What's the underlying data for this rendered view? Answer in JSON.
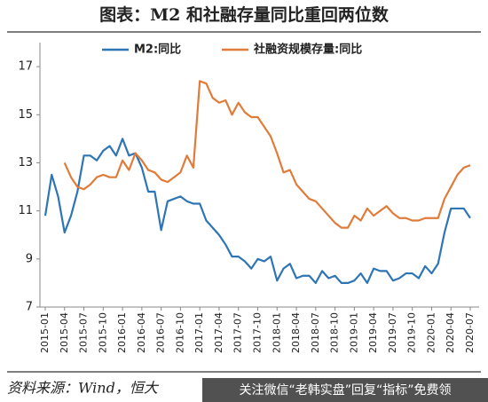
{
  "chart_data": {
    "type": "line",
    "title": "图表：M2 和社融存量同比重回两位数",
    "source": "资料来源：Wind，恒大",
    "watermark": "关注微信“老韩实盘”回复“指标”免费领",
    "categories": [
      "2015-01",
      null,
      null,
      "2015-04",
      null,
      null,
      "2015-07",
      null,
      null,
      "2015-10",
      null,
      null,
      "2016-01",
      null,
      null,
      "2016-04",
      null,
      null,
      "2016-07",
      null,
      null,
      "2016-10",
      null,
      null,
      "2017-01",
      null,
      null,
      "2017-04",
      null,
      null,
      "2017-07",
      null,
      null,
      "2017-10",
      null,
      null,
      "2018-01",
      null,
      null,
      "2018-04",
      null,
      null,
      "2018-07",
      null,
      null,
      "2018-10",
      null,
      null,
      "2019-01",
      null,
      null,
      "2019-04",
      null,
      null,
      "2019-07",
      null,
      null,
      "2019-10",
      null,
      null,
      "2020-01",
      null,
      null,
      "2020-04",
      null,
      null,
      "2020-07"
    ],
    "series": [
      {
        "name": "M2:同比",
        "color": "#2e75b6",
        "values": [
          10.8,
          12.5,
          11.6,
          10.1,
          10.8,
          11.8,
          13.3,
          13.3,
          13.1,
          13.5,
          13.7,
          13.3,
          14.0,
          13.3,
          13.4,
          12.8,
          11.8,
          11.8,
          10.2,
          11.4,
          11.5,
          11.6,
          11.4,
          11.3,
          11.3,
          10.6,
          10.3,
          10.0,
          9.6,
          9.1,
          9.1,
          8.9,
          8.6,
          9.0,
          8.9,
          9.1,
          8.1,
          8.6,
          8.8,
          8.2,
          8.3,
          8.3,
          8.0,
          8.5,
          8.2,
          8.3,
          8.0,
          8.0,
          8.1,
          8.4,
          8.0,
          8.6,
          8.5,
          8.5,
          8.1,
          8.2,
          8.4,
          8.4,
          8.2,
          8.7,
          8.4,
          8.8,
          10.1,
          11.1,
          11.1,
          11.1,
          10.7
        ]
      },
      {
        "name": "社融资规模存量:同比",
        "color": "#e07b39",
        "values": [
          null,
          null,
          null,
          13.0,
          12.4,
          12.0,
          11.9,
          12.1,
          12.4,
          12.5,
          12.4,
          12.4,
          13.1,
          12.7,
          13.4,
          13.1,
          12.7,
          12.6,
          12.3,
          12.2,
          12.4,
          12.6,
          13.3,
          12.8,
          16.4,
          16.3,
          15.7,
          15.5,
          15.6,
          15.0,
          15.5,
          15.1,
          14.9,
          14.9,
          14.5,
          14.1,
          13.4,
          12.6,
          12.7,
          12.1,
          11.8,
          11.5,
          11.4,
          11.1,
          10.8,
          10.5,
          10.3,
          10.3,
          10.8,
          10.6,
          11.1,
          10.8,
          11.0,
          11.2,
          10.9,
          10.7,
          10.7,
          10.6,
          10.6,
          10.7,
          10.7,
          10.7,
          11.5,
          12.0,
          12.5,
          12.8,
          12.9
        ]
      }
    ],
    "ylim": [
      7,
      18
    ],
    "yticks": [
      7,
      9,
      11,
      13,
      15,
      17
    ],
    "grid": false
  }
}
